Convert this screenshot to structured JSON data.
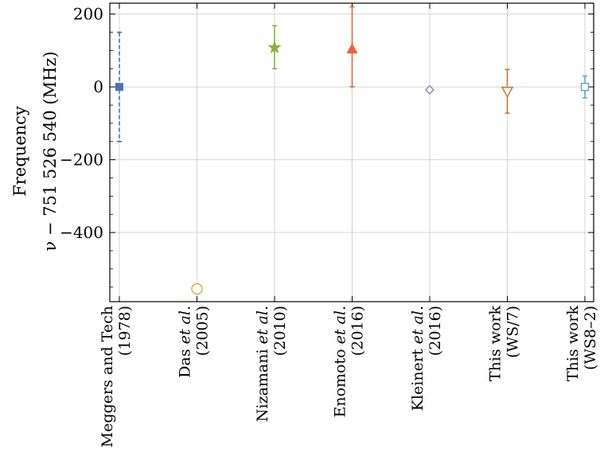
{
  "chart_data": {
    "type": "scatter",
    "ylabel_line1": "Frequency",
    "ylabel_line2": "ν − 751 526 540 (MHz)",
    "ylim": [
      -590,
      230
    ],
    "yticks": [
      200,
      0,
      -200,
      -400
    ],
    "ytick_labels": [
      "200",
      "0",
      "−200",
      "−400"
    ],
    "grid": true,
    "categories": [
      {
        "line1": "Meggers and Tech",
        "line2": "(1978)"
      },
      {
        "line1": "Das et al.",
        "line2": "(2005)",
        "italic_part": "et al."
      },
      {
        "line1": "Nizamani et al.",
        "line2": "(2010)",
        "italic_part": "et al."
      },
      {
        "line1": "Enomoto et al.",
        "line2": "(2016)",
        "italic_part": "et al."
      },
      {
        "line1": "Kleinert et al.",
        "line2": "(2016)",
        "italic_part": "et al."
      },
      {
        "line1": "This work",
        "line2": "(WS/7)"
      },
      {
        "line1": "This work",
        "line2": "(WS8–2)"
      }
    ],
    "points": [
      {
        "y": 0,
        "err_low": 150,
        "err_high": 150,
        "marker": "square-filled",
        "color": "#4c72b0",
        "dashed": true
      },
      {
        "y": -555,
        "err_low": 3,
        "err_high": 3,
        "marker": "circle-open",
        "color": "#e8a23a",
        "dashed": false
      },
      {
        "y": 108,
        "err_low": 58,
        "err_high": 60,
        "marker": "star-filled",
        "color": "#8cb43c",
        "dashed": false
      },
      {
        "y": 103,
        "err_low": 103,
        "err_high": 117,
        "marker": "triangle-up-filled",
        "color": "#e8613c",
        "dashed": false
      },
      {
        "y": -8,
        "err_low": 2,
        "err_high": 2,
        "marker": "diamond-open",
        "color": "#8477b8",
        "dashed": false
      },
      {
        "y": -12,
        "err_low": 60,
        "err_high": 60,
        "marker": "triangle-down-open",
        "color": "#c87428",
        "dashed": false
      },
      {
        "y": 0,
        "err_low": 30,
        "err_high": 30,
        "marker": "square-open",
        "color": "#5ba3cf",
        "dashed": false
      }
    ]
  }
}
